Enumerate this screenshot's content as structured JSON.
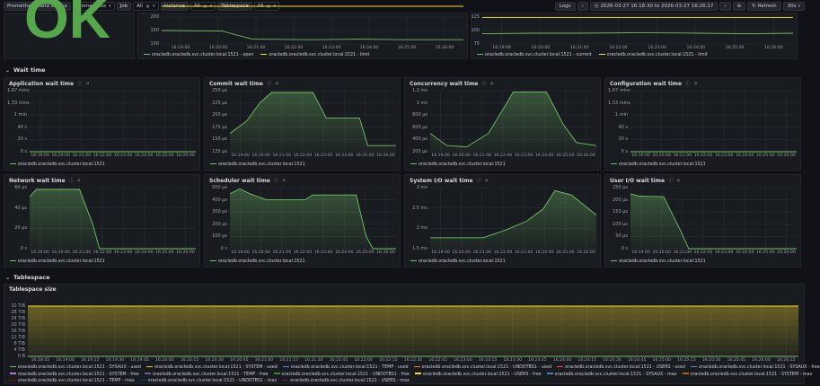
{
  "topbar": {
    "datasource_label": "Prometheus data source",
    "datasource_value": "prometheus",
    "job_label": "Job",
    "job_value": "All",
    "instance_label": "Instance",
    "instance_value": "All",
    "tablespace_label": "Tablespace",
    "tablespace_value": "All",
    "logs_label": "Logs",
    "time_range": "2026-03-27 16:18:30 to 2026-03-27 16:26:17",
    "refresh_label": "Refresh",
    "interval": "30s"
  },
  "top_panels": {
    "status_text": "OK",
    "left_y": [
      "200",
      "150",
      "100"
    ],
    "left_x": [
      "16:19:00",
      "16:20:00",
      "16:21:00",
      "16:22:00",
      "16:23:00",
      "16:24:00",
      "16:25:00",
      "16:26:00"
    ],
    "left_legend": [
      "oracledb.oracledb.svc.cluster.local:1521 - open",
      "oracledb.oracledb.svc.cluster.local:1521 - limit"
    ],
    "right_y": [
      "125",
      "100",
      "75"
    ],
    "right_x": [
      "16:19:00",
      "16:20:00",
      "16:21:00",
      "16:22:00",
      "16:23:00",
      "16:24:00",
      "16:25:00",
      "16:26:00"
    ],
    "right_legend": [
      "oracledb.oracledb.svc.cluster.local:1521 - current",
      "oracledb.oracledb.svc.cluster.local:1521 - limit"
    ]
  },
  "sections": {
    "wait_time": "Wait time",
    "tablespace": "Tablespace"
  },
  "wait_panels": [
    {
      "title": "Application wait time",
      "y": [
        "1.67 mins",
        "1.33 mins",
        "1 min",
        "40 s",
        "20 s",
        "0 s"
      ],
      "x": [
        "16:19:00",
        "16:20:00",
        "16:21:00",
        "16:22:00",
        "16:23:00",
        "16:24:00",
        "16:25:00",
        "16:26:00"
      ],
      "legend": "oracledb.oracledb.svc.cluster.local:1521"
    },
    {
      "title": "Commit wait time",
      "y": [
        "250 µs",
        "225 µs",
        "200 µs",
        "175 µs",
        "150 µs",
        "125 µs"
      ],
      "x": [
        "16:19:00",
        "16:20:00",
        "16:21:00",
        "16:22:00",
        "16:23:00",
        "16:24:00",
        "16:25:00",
        "16:26:00"
      ],
      "legend": "oracledb.oracledb.svc.cluster.local:1521"
    },
    {
      "title": "Concurrency wait time",
      "y": [
        "1.2 ms",
        "1 ms",
        "800 µs",
        "600 µs",
        "400 µs",
        "200 µs"
      ],
      "x": [
        "16:19:00",
        "16:20:00",
        "16:21:00",
        "16:22:00",
        "16:23:00",
        "16:24:00",
        "16:25:00",
        "16:26:00"
      ],
      "legend": "oracledb.oracledb.svc.cluster.local:1521"
    },
    {
      "title": "Configuration wait time",
      "y": [
        "1.67 mins",
        "1.33 mins",
        "1 min",
        "40 s",
        "20 s",
        "0 s"
      ],
      "x": [
        "16:19:00",
        "16:20:00",
        "16:21:00",
        "16:22:00",
        "16:23:00",
        "16:24:00",
        "16:25:00",
        "16:26:00"
      ],
      "legend": "oracledb.oracledb.svc.cluster.local:1521"
    },
    {
      "title": "Network wait time",
      "y": [
        "60 µs",
        "40 µs",
        "20 µs",
        "0 s"
      ],
      "x": [
        "16:19:00",
        "16:20:00",
        "16:21:00",
        "16:22:00",
        "16:23:00",
        "16:24:00",
        "16:25:00",
        "16:26:00"
      ],
      "legend": "oracledb.oracledb.svc.cluster.local:1521"
    },
    {
      "title": "Scheduler wait time",
      "y": [
        "500 µs",
        "400 µs",
        "300 µs",
        "200 µs",
        "100 µs",
        "0 s"
      ],
      "x": [
        "16:19:00",
        "16:20:00",
        "16:21:00",
        "16:22:00",
        "16:23:00",
        "16:24:00",
        "16:25:00",
        "16:26:00"
      ],
      "legend": "oracledb.oracledb.svc.cluster.local:1521"
    },
    {
      "title": "System I/O wait time",
      "y": [
        "3 ms",
        "2.5 ms",
        "2 ms",
        "1.5 ms"
      ],
      "x": [
        "16:19:00",
        "16:20:00",
        "16:21:00",
        "16:22:00",
        "16:23:00",
        "16:24:00",
        "16:25:00",
        "16:26:00"
      ],
      "legend": "oracledb.oracledb.svc.cluster.local:1521"
    },
    {
      "title": "User I/O wait time",
      "y": [
        "250 µs",
        "200 µs",
        "150 µs",
        "100 µs",
        "50 µs",
        "0 s"
      ],
      "x": [
        "16:19:00",
        "16:20:00",
        "16:21:00",
        "16:22:00",
        "16:23:00",
        "16:24:00",
        "16:25:00",
        "16:26:00"
      ],
      "legend": "oracledb.oracledb.svc.cluster.local:1521"
    }
  ],
  "tablespace_panel": {
    "title": "Tablespace size",
    "y": [
      "32 TiB",
      "28 TiB",
      "24 TiB",
      "20 TiB",
      "16 TiB",
      "12 TiB",
      "8 TiB",
      "4 TiB",
      "0 B"
    ],
    "x": [
      "16:18:45",
      "16:19:00",
      "16:19:15",
      "16:19:30",
      "16:19:45",
      "16:20:00",
      "16:20:15",
      "16:20:30",
      "16:20:45",
      "16:21:00",
      "16:21:15",
      "16:21:30",
      "16:21:45",
      "16:22:00",
      "16:22:15",
      "16:22:30",
      "16:22:45",
      "16:23:00",
      "16:23:15",
      "16:23:30",
      "16:23:45",
      "16:24:00",
      "16:24:15",
      "16:24:30",
      "16:24:45",
      "16:25:00",
      "16:25:15",
      "16:25:30",
      "16:25:45",
      "16:26:00",
      "16:26:15"
    ],
    "legend_row1": [
      {
        "label": "oracledb.oracledb.svc.cluster.local:1521 - SYSAUX - used",
        "color": "#73bf69"
      },
      {
        "label": "oracledb.oracledb.svc.cluster.local:1521 - SYSTEM - used",
        "color": "#f2cc0c"
      },
      {
        "label": "oracledb.oracledb.svc.cluster.local:1521 - TEMP - used",
        "color": "#5794f2"
      },
      {
        "label": "oracledb.oracledb.svc.cluster.local:1521 - UNDOTBS1 - used",
        "color": "#ff780a"
      },
      {
        "label": "oracledb.oracledb.svc.cluster.local:1521 - USERS - used",
        "color": "#f2495c"
      },
      {
        "label": "oracledb.oracledb.svc.cluster.local:1521 - SYSAUX - free",
        "color": "#5794f2"
      }
    ],
    "legend_row2": [
      {
        "label": "oracledb.oracledb.svc.cluster.local:1521 - SYSTEM - free",
        "color": "#b877d9"
      },
      {
        "label": "oracledb.oracledb.svc.cluster.local:1521 - TEMP - free",
        "color": "#705da0"
      },
      {
        "label": "oracledb.oracledb.svc.cluster.local:1521 - UNDOTBS1 - free",
        "color": "#37872d"
      },
      {
        "label": "oracledb.oracledb.svc.cluster.local:1521 - USERS - free",
        "color": "#fade2a"
      },
      {
        "label": "oracledb.oracledb.svc.cluster.local:1521 - SYSAUX - max",
        "color": "#447ebc"
      },
      {
        "label": "oracledb.oracledb.svc.cluster.local:1521 - SYSTEM - max",
        "color": "#c15c17"
      }
    ],
    "legend_row3": [
      {
        "label": "oracledb.oracledb.svc.cluster.local:1521 - TEMP - max",
        "color": "#890f02"
      },
      {
        "label": "oracledb.oracledb.svc.cluster.local:1521 - UNDOTBS1 - max",
        "color": "#0a437c"
      },
      {
        "label": "oracledb.oracledb.svc.cluster.local:1521 - USERS - max",
        "color": "#6d1f62"
      }
    ]
  },
  "colors": {
    "series": "#73bf69",
    "series_alt": "#fade2a",
    "bg": "#111217",
    "panel": "#181b1f"
  }
}
